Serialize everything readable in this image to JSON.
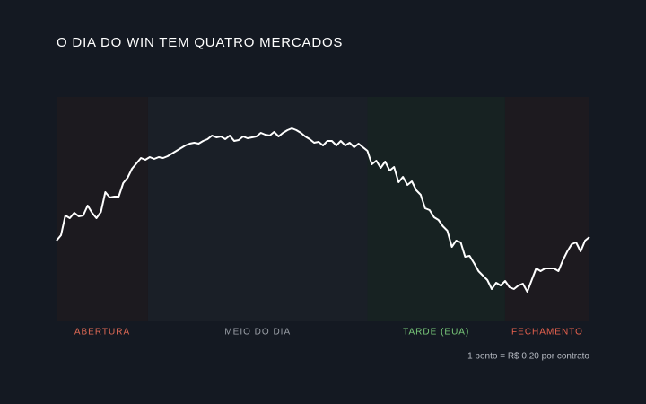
{
  "chart_data": {
    "type": "line",
    "title": "O DIA DO WIN TEM QUATRO MERCADOS",
    "caption": "1 ponto = R$ 0,20 por contrato",
    "color": "#ffffff",
    "ylim": [
      0,
      250
    ],
    "xlim": [
      0,
      120
    ],
    "regions": [
      {
        "label": "ABERTURA",
        "color": "#e06a55",
        "fill": "#1c1a1f",
        "span": [
          0,
          20.6
        ]
      },
      {
        "label": "MEIO DO DIA",
        "color": "#9ba0a8",
        "fill": "#1a1f27",
        "span": [
          20.6,
          70
        ]
      },
      {
        "label": "TARDE (EUA)",
        "color": "#79c97a",
        "fill": "#172222",
        "span": [
          70,
          101
        ]
      },
      {
        "label": "FECHAMENTO",
        "color": "#e8624e",
        "fill": "#1d1a1f",
        "span": [
          101,
          120
        ]
      }
    ],
    "values": [
      90,
      96,
      118,
      115,
      121,
      117,
      118,
      129,
      121,
      115,
      122,
      144,
      138,
      139,
      139,
      154,
      160,
      170,
      176,
      182,
      180,
      183,
      181,
      183,
      182,
      184,
      187,
      190,
      193,
      196,
      198,
      199,
      198,
      201,
      203,
      207,
      205,
      206,
      203,
      207,
      201,
      202,
      206,
      204,
      205,
      206,
      210,
      208,
      207,
      211,
      206,
      210,
      213,
      215,
      213,
      210,
      206,
      203,
      199,
      200,
      196,
      201,
      201,
      196,
      201,
      196,
      199,
      194,
      198,
      194,
      190,
      175,
      179,
      171,
      178,
      168,
      172,
      155,
      161,
      152,
      156,
      146,
      141,
      126,
      124,
      116,
      113,
      106,
      101,
      83,
      90,
      88,
      72,
      73,
      65,
      56,
      51,
      46,
      36,
      43,
      40,
      45,
      38,
      36,
      40,
      42,
      33,
      46,
      59,
      56,
      59,
      59,
      59,
      56,
      68,
      78,
      86,
      88,
      78,
      90,
      94
    ]
  }
}
